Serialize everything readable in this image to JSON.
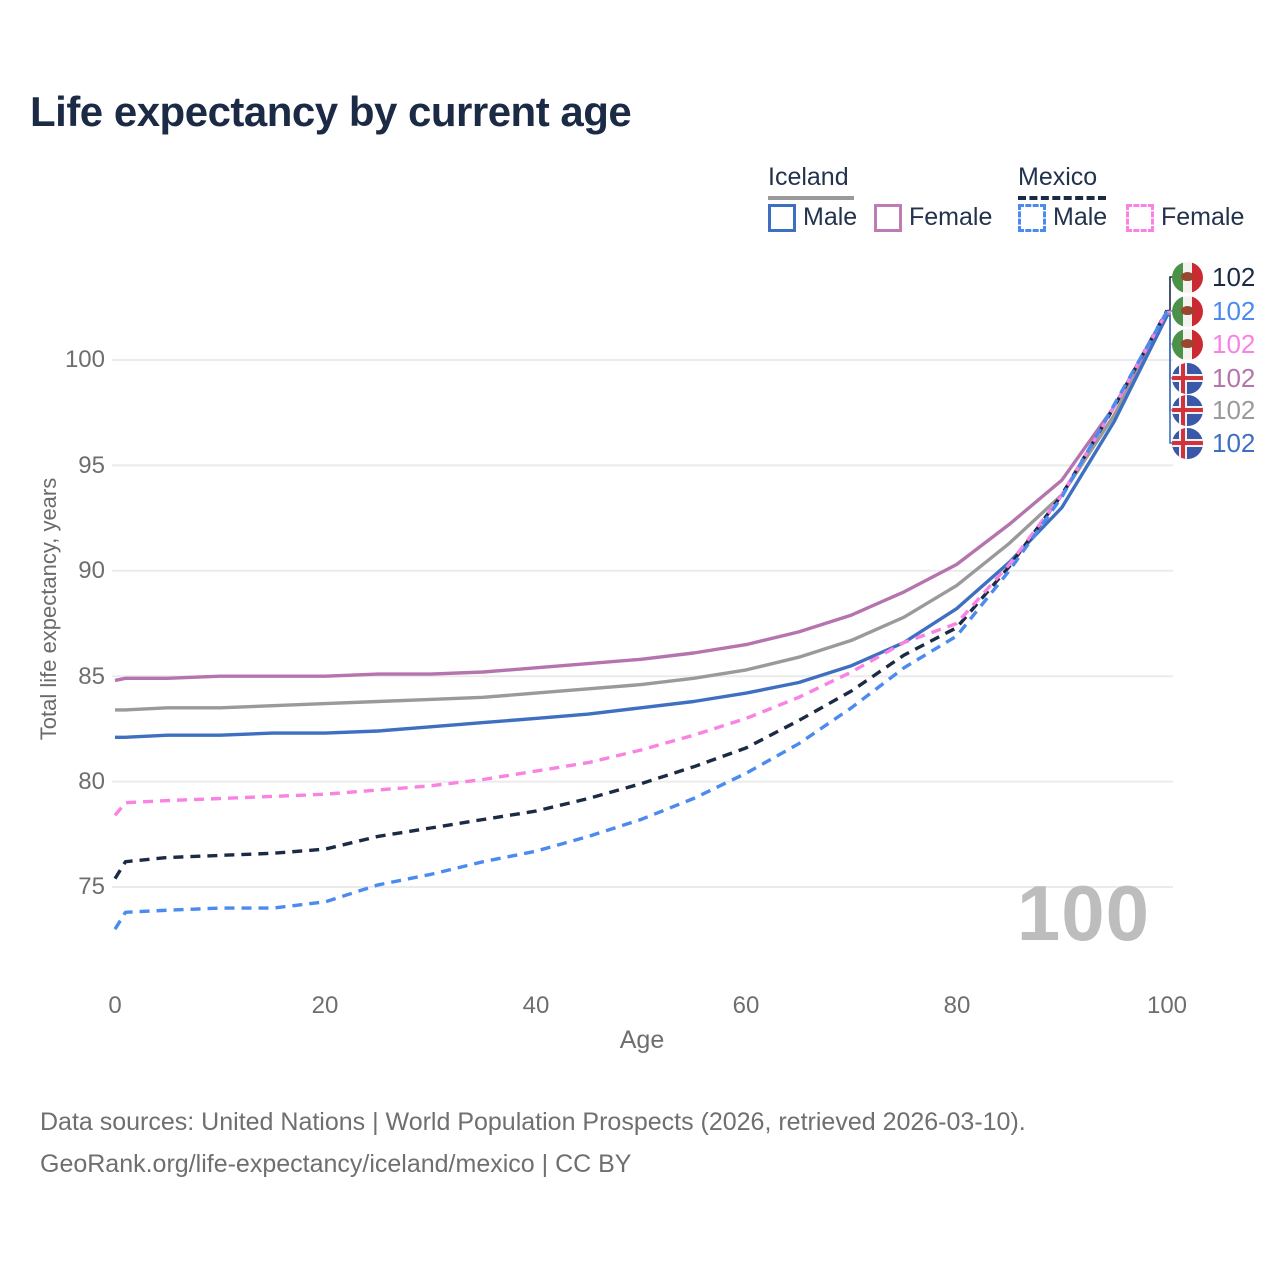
{
  "title": "Life expectancy by current age",
  "legend": {
    "iceland_label": "Iceland",
    "mexico_label": "Mexico",
    "iceland_male_label": "Male",
    "iceland_female_label": "Female",
    "mexico_male_label": "Male",
    "mexico_female_label": "Female"
  },
  "watermark": "100",
  "axes": {
    "y_label": "Total life expectancy, years",
    "x_label": "Age",
    "y_ticks": [
      100,
      95,
      90,
      85,
      80,
      75
    ],
    "x_ticks": [
      0,
      20,
      40,
      60,
      80,
      100
    ]
  },
  "end_labels": [
    {
      "flag": "mexico",
      "value": "102",
      "color": "#1c2b45",
      "series": "mexico_both"
    },
    {
      "flag": "mexico",
      "value": "102",
      "color": "#4b8bef",
      "series": "mexico_male"
    },
    {
      "flag": "mexico",
      "value": "102",
      "color": "#fa82e2",
      "series": "mexico_female"
    },
    {
      "flag": "iceland",
      "value": "102",
      "color": "#b574ae",
      "series": "iceland_female"
    },
    {
      "flag": "iceland",
      "value": "102",
      "color": "#9a9a9a",
      "series": "iceland_both"
    },
    {
      "flag": "iceland",
      "value": "102",
      "color": "#3f6fc1",
      "series": "iceland_male"
    }
  ],
  "footer": {
    "line1": "Data sources: United Nations | World Population Prospects (2026, retrieved 2026-03-10).",
    "line2": "GeoRank.org/life-expectancy/iceland/mexico | CC BY"
  },
  "colors": {
    "title_text": "#1c2b45",
    "tick_text": "#6e6e6e",
    "gridline": "#ebebeb",
    "watermark": "#bdbdbd",
    "iceland_male": "#3f6fc1",
    "iceland_female": "#b574ae",
    "iceland_both": "#9a9a9a",
    "mexico_male": "#4b8bef",
    "mexico_female": "#fa82e2",
    "mexico_both": "#1c2b45"
  },
  "chart_data": {
    "type": "line",
    "title": "Life expectancy by current age",
    "xlabel": "Age",
    "ylabel": "Total life expectancy, years",
    "xlim": [
      0,
      100
    ],
    "ylim": [
      71,
      103.5
    ],
    "grid": "horizontal",
    "legend_position": "top-right",
    "x": [
      0,
      1,
      5,
      10,
      15,
      20,
      25,
      30,
      35,
      40,
      45,
      50,
      55,
      60,
      65,
      70,
      75,
      80,
      85,
      90,
      95,
      100
    ],
    "series": [
      {
        "name": "iceland_both",
        "country": "Iceland",
        "sex": "Both",
        "style": "solid",
        "color": "#9a9a9a",
        "values": [
          83.4,
          83.4,
          83.5,
          83.5,
          83.6,
          83.7,
          83.8,
          83.9,
          84.0,
          84.2,
          84.4,
          84.6,
          84.9,
          85.3,
          85.9,
          86.7,
          87.8,
          89.3,
          91.3,
          93.6,
          97.4,
          102.15
        ]
      },
      {
        "name": "iceland_female",
        "country": "Iceland",
        "sex": "Female",
        "style": "solid",
        "color": "#b574ae",
        "values": [
          84.8,
          84.9,
          84.9,
          85.0,
          85.0,
          85.0,
          85.1,
          85.1,
          85.2,
          85.4,
          85.6,
          85.8,
          86.1,
          86.5,
          87.1,
          87.9,
          89.0,
          90.3,
          92.2,
          94.3,
          97.8,
          102.2
        ]
      },
      {
        "name": "iceland_male",
        "country": "Iceland",
        "sex": "Male",
        "style": "solid",
        "color": "#3f6fc1",
        "values": [
          82.1,
          82.1,
          82.2,
          82.2,
          82.3,
          82.3,
          82.4,
          82.6,
          82.8,
          83.0,
          83.2,
          83.5,
          83.8,
          84.2,
          84.7,
          85.5,
          86.6,
          88.2,
          90.4,
          93.0,
          97.1,
          102.1
        ]
      },
      {
        "name": "mexico_both",
        "country": "Mexico",
        "sex": "Both",
        "style": "dashed",
        "color": "#1c2b45",
        "values": [
          75.4,
          76.2,
          76.4,
          76.5,
          76.6,
          76.8,
          77.4,
          77.8,
          78.2,
          78.6,
          79.2,
          79.9,
          80.7,
          81.6,
          82.9,
          84.3,
          86.0,
          87.3,
          90.2,
          93.6,
          97.8,
          102.35
        ]
      },
      {
        "name": "mexico_female",
        "country": "Mexico",
        "sex": "Female",
        "style": "dashed",
        "color": "#fa82e2",
        "values": [
          78.4,
          79.0,
          79.1,
          79.2,
          79.3,
          79.4,
          79.6,
          79.8,
          80.1,
          80.5,
          80.9,
          81.5,
          82.2,
          83.0,
          84.0,
          85.2,
          86.6,
          87.5,
          90.3,
          93.6,
          97.8,
          102.3
        ]
      },
      {
        "name": "mexico_male",
        "country": "Mexico",
        "sex": "Male",
        "style": "dashed",
        "color": "#4b8bef",
        "values": [
          73.0,
          73.8,
          73.9,
          74.0,
          74.0,
          74.3,
          75.1,
          75.6,
          76.2,
          76.7,
          77.4,
          78.2,
          79.2,
          80.4,
          81.8,
          83.5,
          85.4,
          86.9,
          90.0,
          93.5,
          97.9,
          102.3
        ]
      }
    ]
  }
}
